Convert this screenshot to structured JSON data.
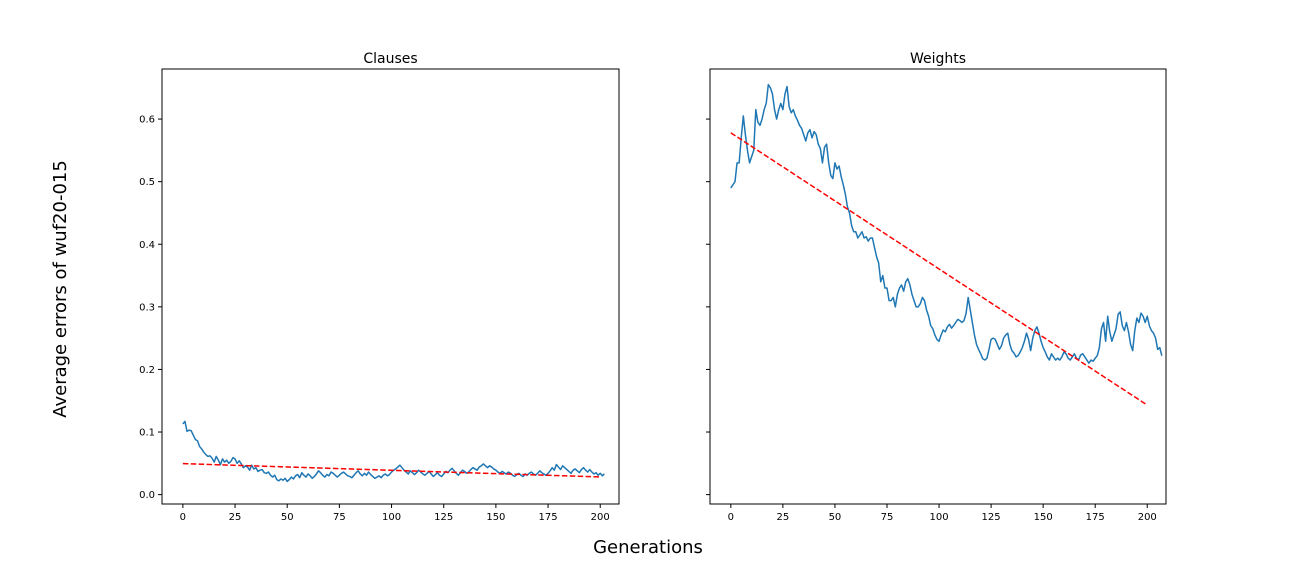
{
  "figure": {
    "xlabel": "Generations",
    "ylabel": "Average errors of wuf20-015"
  },
  "chart_data": [
    {
      "type": "line",
      "title": "Clauses",
      "xlabel": "",
      "ylabel": "",
      "xlim": [
        -10,
        209
      ],
      "ylim": [
        -0.015,
        0.68
      ],
      "xticks": [
        0,
        25,
        50,
        75,
        100,
        125,
        150,
        175,
        200
      ],
      "yticks": [
        0.0,
        0.1,
        0.2,
        0.3,
        0.4,
        0.5,
        0.6
      ],
      "grid": false,
      "series": [
        {
          "color": "#1f77b4",
          "style": "solid",
          "x_start": 0,
          "x_step": 1,
          "y": [
            0.113,
            0.117,
            0.101,
            0.103,
            0.102,
            0.095,
            0.088,
            0.086,
            0.077,
            0.073,
            0.068,
            0.064,
            0.061,
            0.062,
            0.058,
            0.052,
            0.061,
            0.055,
            0.048,
            0.057,
            0.052,
            0.055,
            0.05,
            0.053,
            0.059,
            0.057,
            0.05,
            0.054,
            0.049,
            0.043,
            0.046,
            0.044,
            0.039,
            0.047,
            0.041,
            0.043,
            0.037,
            0.039,
            0.04,
            0.035,
            0.034,
            0.036,
            0.031,
            0.028,
            0.031,
            0.024,
            0.022,
            0.025,
            0.023,
            0.026,
            0.021,
            0.024,
            0.028,
            0.025,
            0.03,
            0.032,
            0.027,
            0.035,
            0.031,
            0.028,
            0.033,
            0.03,
            0.026,
            0.029,
            0.033,
            0.038,
            0.035,
            0.031,
            0.028,
            0.032,
            0.03,
            0.036,
            0.034,
            0.031,
            0.028,
            0.031,
            0.034,
            0.036,
            0.033,
            0.03,
            0.029,
            0.027,
            0.031,
            0.035,
            0.038,
            0.033,
            0.03,
            0.034,
            0.031,
            0.036,
            0.032,
            0.029,
            0.026,
            0.028,
            0.03,
            0.027,
            0.031,
            0.033,
            0.03,
            0.032,
            0.036,
            0.039,
            0.041,
            0.044,
            0.047,
            0.043,
            0.039,
            0.036,
            0.033,
            0.038,
            0.035,
            0.032,
            0.035,
            0.039,
            0.036,
            0.033,
            0.031,
            0.034,
            0.037,
            0.033,
            0.029,
            0.032,
            0.035,
            0.031,
            0.029,
            0.033,
            0.037,
            0.035,
            0.039,
            0.042,
            0.038,
            0.034,
            0.031,
            0.035,
            0.039,
            0.037,
            0.034,
            0.036,
            0.04,
            0.043,
            0.041,
            0.039,
            0.044,
            0.046,
            0.049,
            0.046,
            0.043,
            0.046,
            0.044,
            0.041,
            0.039,
            0.036,
            0.034,
            0.037,
            0.035,
            0.033,
            0.036,
            0.034,
            0.031,
            0.029,
            0.032,
            0.034,
            0.031,
            0.029,
            0.033,
            0.031,
            0.034,
            0.036,
            0.033,
            0.031,
            0.034,
            0.038,
            0.035,
            0.033,
            0.031,
            0.034,
            0.038,
            0.043,
            0.039,
            0.048,
            0.044,
            0.04,
            0.046,
            0.043,
            0.04,
            0.037,
            0.034,
            0.039,
            0.041,
            0.038,
            0.035,
            0.04,
            0.043,
            0.039,
            0.036,
            0.04,
            0.036,
            0.033,
            0.035,
            0.031,
            0.034,
            0.03,
            0.033
          ]
        },
        {
          "color": "#ff0000",
          "style": "dashed",
          "x": [
            0,
            200
          ],
          "y": [
            0.0495,
            0.0282
          ]
        }
      ]
    },
    {
      "type": "line",
      "title": "Weights",
      "xlabel": "",
      "ylabel": "",
      "xlim": [
        -10,
        209
      ],
      "ylim": [
        -0.015,
        0.68
      ],
      "xticks": [
        0,
        25,
        50,
        75,
        100,
        125,
        150,
        175,
        200
      ],
      "yticks": [
        0.0,
        0.1,
        0.2,
        0.3,
        0.4,
        0.5,
        0.6
      ],
      "grid": false,
      "series": [
        {
          "color": "#1f77b4",
          "style": "solid",
          "x_start": 0,
          "x_step": 1,
          "y": [
            0.49,
            0.495,
            0.5,
            0.53,
            0.53,
            0.57,
            0.605,
            0.575,
            0.55,
            0.53,
            0.54,
            0.55,
            0.615,
            0.595,
            0.59,
            0.6,
            0.615,
            0.625,
            0.655,
            0.65,
            0.64,
            0.615,
            0.6,
            0.615,
            0.625,
            0.615,
            0.64,
            0.652,
            0.62,
            0.61,
            0.615,
            0.605,
            0.598,
            0.59,
            0.585,
            0.575,
            0.565,
            0.578,
            0.583,
            0.57,
            0.58,
            0.575,
            0.56,
            0.553,
            0.53,
            0.555,
            0.56,
            0.53,
            0.51,
            0.505,
            0.53,
            0.52,
            0.525,
            0.508,
            0.495,
            0.48,
            0.46,
            0.45,
            0.43,
            0.42,
            0.42,
            0.41,
            0.415,
            0.42,
            0.41,
            0.412,
            0.405,
            0.41,
            0.41,
            0.395,
            0.38,
            0.37,
            0.34,
            0.35,
            0.33,
            0.33,
            0.31,
            0.31,
            0.315,
            0.3,
            0.32,
            0.33,
            0.335,
            0.325,
            0.34,
            0.345,
            0.335,
            0.32,
            0.31,
            0.3,
            0.3,
            0.305,
            0.315,
            0.31,
            0.295,
            0.285,
            0.27,
            0.265,
            0.255,
            0.248,
            0.245,
            0.255,
            0.263,
            0.26,
            0.268,
            0.272,
            0.266,
            0.27,
            0.275,
            0.28,
            0.278,
            0.275,
            0.278,
            0.29,
            0.315,
            0.295,
            0.275,
            0.255,
            0.24,
            0.232,
            0.225,
            0.217,
            0.215,
            0.218,
            0.232,
            0.248,
            0.25,
            0.248,
            0.24,
            0.232,
            0.238,
            0.25,
            0.255,
            0.258,
            0.24,
            0.23,
            0.226,
            0.22,
            0.222,
            0.228,
            0.235,
            0.245,
            0.258,
            0.248,
            0.23,
            0.25,
            0.262,
            0.268,
            0.258,
            0.245,
            0.235,
            0.228,
            0.22,
            0.215,
            0.225,
            0.22,
            0.215,
            0.218,
            0.215,
            0.22,
            0.228,
            0.225,
            0.218,
            0.215,
            0.22,
            0.225,
            0.218,
            0.215,
            0.223,
            0.225,
            0.22,
            0.215,
            0.21,
            0.215,
            0.213,
            0.218,
            0.222,
            0.235,
            0.265,
            0.275,
            0.245,
            0.285,
            0.26,
            0.245,
            0.255,
            0.265,
            0.288,
            0.292,
            0.27,
            0.262,
            0.275,
            0.26,
            0.24,
            0.23,
            0.262,
            0.282,
            0.275,
            0.29,
            0.285,
            0.275,
            0.285,
            0.27,
            0.262,
            0.258,
            0.25,
            0.232,
            0.235,
            0.222
          ]
        },
        {
          "color": "#ff0000",
          "style": "dashed",
          "x": [
            0,
            200
          ],
          "y": [
            0.578,
            0.143
          ]
        }
      ]
    }
  ]
}
